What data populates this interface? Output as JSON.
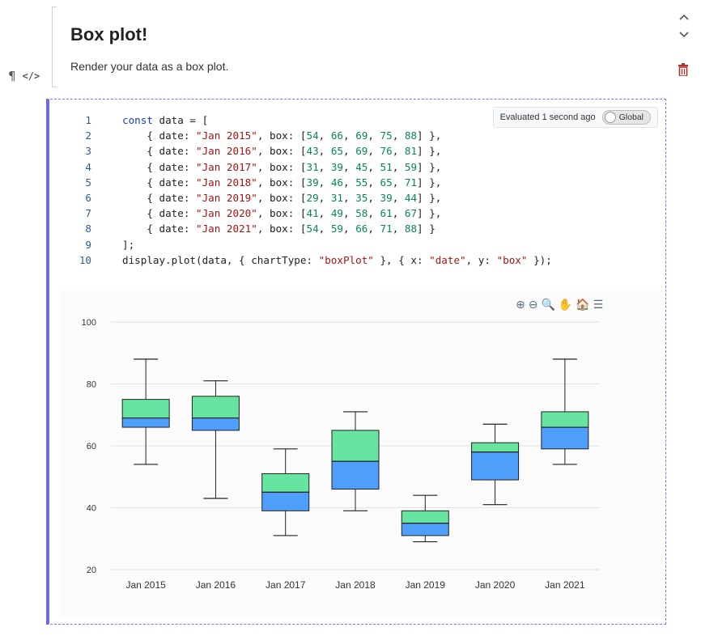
{
  "markdown_cell": {
    "title": "Box plot!",
    "text": "Render your data as a box plot."
  },
  "gutter": {
    "paragraph_icon": "¶",
    "code_icon": "</>"
  },
  "controls": {
    "up_icon": "^",
    "down_icon": "v",
    "delete_icon": "🗑"
  },
  "code_cell": {
    "lines": [
      [
        {
          "t": "kw",
          "v": "const"
        },
        {
          "t": "plain",
          "v": " data = ["
        }
      ],
      [
        {
          "t": "plain",
          "v": "    { date: "
        },
        {
          "t": "str",
          "v": "\"Jan 2015\""
        },
        {
          "t": "plain",
          "v": ", box: ["
        },
        {
          "t": "num",
          "v": "54"
        },
        {
          "t": "plain",
          "v": ", "
        },
        {
          "t": "num",
          "v": "66"
        },
        {
          "t": "plain",
          "v": ", "
        },
        {
          "t": "num",
          "v": "69"
        },
        {
          "t": "plain",
          "v": ", "
        },
        {
          "t": "num",
          "v": "75"
        },
        {
          "t": "plain",
          "v": ", "
        },
        {
          "t": "num",
          "v": "88"
        },
        {
          "t": "plain",
          "v": "] },"
        }
      ],
      [
        {
          "t": "plain",
          "v": "    { date: "
        },
        {
          "t": "str",
          "v": "\"Jan 2016\""
        },
        {
          "t": "plain",
          "v": ", box: ["
        },
        {
          "t": "num",
          "v": "43"
        },
        {
          "t": "plain",
          "v": ", "
        },
        {
          "t": "num",
          "v": "65"
        },
        {
          "t": "plain",
          "v": ", "
        },
        {
          "t": "num",
          "v": "69"
        },
        {
          "t": "plain",
          "v": ", "
        },
        {
          "t": "num",
          "v": "76"
        },
        {
          "t": "plain",
          "v": ", "
        },
        {
          "t": "num",
          "v": "81"
        },
        {
          "t": "plain",
          "v": "] },"
        }
      ],
      [
        {
          "t": "plain",
          "v": "    { date: "
        },
        {
          "t": "str",
          "v": "\"Jan 2017\""
        },
        {
          "t": "plain",
          "v": ", box: ["
        },
        {
          "t": "num",
          "v": "31"
        },
        {
          "t": "plain",
          "v": ", "
        },
        {
          "t": "num",
          "v": "39"
        },
        {
          "t": "plain",
          "v": ", "
        },
        {
          "t": "num",
          "v": "45"
        },
        {
          "t": "plain",
          "v": ", "
        },
        {
          "t": "num",
          "v": "51"
        },
        {
          "t": "plain",
          "v": ", "
        },
        {
          "t": "num",
          "v": "59"
        },
        {
          "t": "plain",
          "v": "] },"
        }
      ],
      [
        {
          "t": "plain",
          "v": "    { date: "
        },
        {
          "t": "str",
          "v": "\"Jan 2018\""
        },
        {
          "t": "plain",
          "v": ", box: ["
        },
        {
          "t": "num",
          "v": "39"
        },
        {
          "t": "plain",
          "v": ", "
        },
        {
          "t": "num",
          "v": "46"
        },
        {
          "t": "plain",
          "v": ", "
        },
        {
          "t": "num",
          "v": "55"
        },
        {
          "t": "plain",
          "v": ", "
        },
        {
          "t": "num",
          "v": "65"
        },
        {
          "t": "plain",
          "v": ", "
        },
        {
          "t": "num",
          "v": "71"
        },
        {
          "t": "plain",
          "v": "] },"
        }
      ],
      [
        {
          "t": "plain",
          "v": "    { date: "
        },
        {
          "t": "str",
          "v": "\"Jan 2019\""
        },
        {
          "t": "plain",
          "v": ", box: ["
        },
        {
          "t": "num",
          "v": "29"
        },
        {
          "t": "plain",
          "v": ", "
        },
        {
          "t": "num",
          "v": "31"
        },
        {
          "t": "plain",
          "v": ", "
        },
        {
          "t": "num",
          "v": "35"
        },
        {
          "t": "plain",
          "v": ", "
        },
        {
          "t": "num",
          "v": "39"
        },
        {
          "t": "plain",
          "v": ", "
        },
        {
          "t": "num",
          "v": "44"
        },
        {
          "t": "plain",
          "v": "] },"
        }
      ],
      [
        {
          "t": "plain",
          "v": "    { date: "
        },
        {
          "t": "str",
          "v": "\"Jan 2020\""
        },
        {
          "t": "plain",
          "v": ", box: ["
        },
        {
          "t": "num",
          "v": "41"
        },
        {
          "t": "plain",
          "v": ", "
        },
        {
          "t": "num",
          "v": "49"
        },
        {
          "t": "plain",
          "v": ", "
        },
        {
          "t": "num",
          "v": "58"
        },
        {
          "t": "plain",
          "v": ", "
        },
        {
          "t": "num",
          "v": "61"
        },
        {
          "t": "plain",
          "v": ", "
        },
        {
          "t": "num",
          "v": "67"
        },
        {
          "t": "plain",
          "v": "] },"
        }
      ],
      [
        {
          "t": "plain",
          "v": "    { date: "
        },
        {
          "t": "str",
          "v": "\"Jan 2021\""
        },
        {
          "t": "plain",
          "v": ", box: ["
        },
        {
          "t": "num",
          "v": "54"
        },
        {
          "t": "plain",
          "v": ", "
        },
        {
          "t": "num",
          "v": "59"
        },
        {
          "t": "plain",
          "v": ", "
        },
        {
          "t": "num",
          "v": "66"
        },
        {
          "t": "plain",
          "v": ", "
        },
        {
          "t": "num",
          "v": "71"
        },
        {
          "t": "plain",
          "v": ", "
        },
        {
          "t": "num",
          "v": "88"
        },
        {
          "t": "plain",
          "v": "] }"
        }
      ],
      [
        {
          "t": "plain",
          "v": "];"
        }
      ],
      [
        {
          "t": "plain",
          "v": "display.plot(data, { chartType: "
        },
        {
          "t": "str",
          "v": "\"boxPlot\""
        },
        {
          "t": "plain",
          "v": " }, { x: "
        },
        {
          "t": "str",
          "v": "\"date\""
        },
        {
          "t": "plain",
          "v": ", y: "
        },
        {
          "t": "str",
          "v": "\"box\""
        },
        {
          "t": "plain",
          "v": " });"
        }
      ]
    ],
    "eval_status": "Evaluated 1 second ago",
    "global_toggle_label": "Global"
  },
  "chart_toolbar": [
    "⊕",
    "⊖",
    "🔍",
    "✋",
    "🏠",
    "☰"
  ],
  "colors": {
    "upper_box": "#66e4a0",
    "lower_box": "#4d9ffb",
    "whisker": "#222222",
    "grid": "#e2e2e2"
  },
  "chart_data": {
    "type": "boxPlot",
    "categories": [
      "Jan 2015",
      "Jan 2016",
      "Jan 2017",
      "Jan 2018",
      "Jan 2019",
      "Jan 2020",
      "Jan 2021"
    ],
    "boxes": [
      [
        54,
        66,
        69,
        75,
        88
      ],
      [
        43,
        65,
        69,
        76,
        81
      ],
      [
        31,
        39,
        45,
        51,
        59
      ],
      [
        39,
        46,
        55,
        65,
        71
      ],
      [
        29,
        31,
        35,
        39,
        44
      ],
      [
        41,
        49,
        58,
        61,
        67
      ],
      [
        54,
        59,
        66,
        71,
        88
      ]
    ],
    "yticks": [
      20,
      40,
      60,
      80,
      100
    ],
    "ylim": [
      20,
      100
    ],
    "title": "",
    "xlabel": "",
    "ylabel": "",
    "grid": true
  }
}
